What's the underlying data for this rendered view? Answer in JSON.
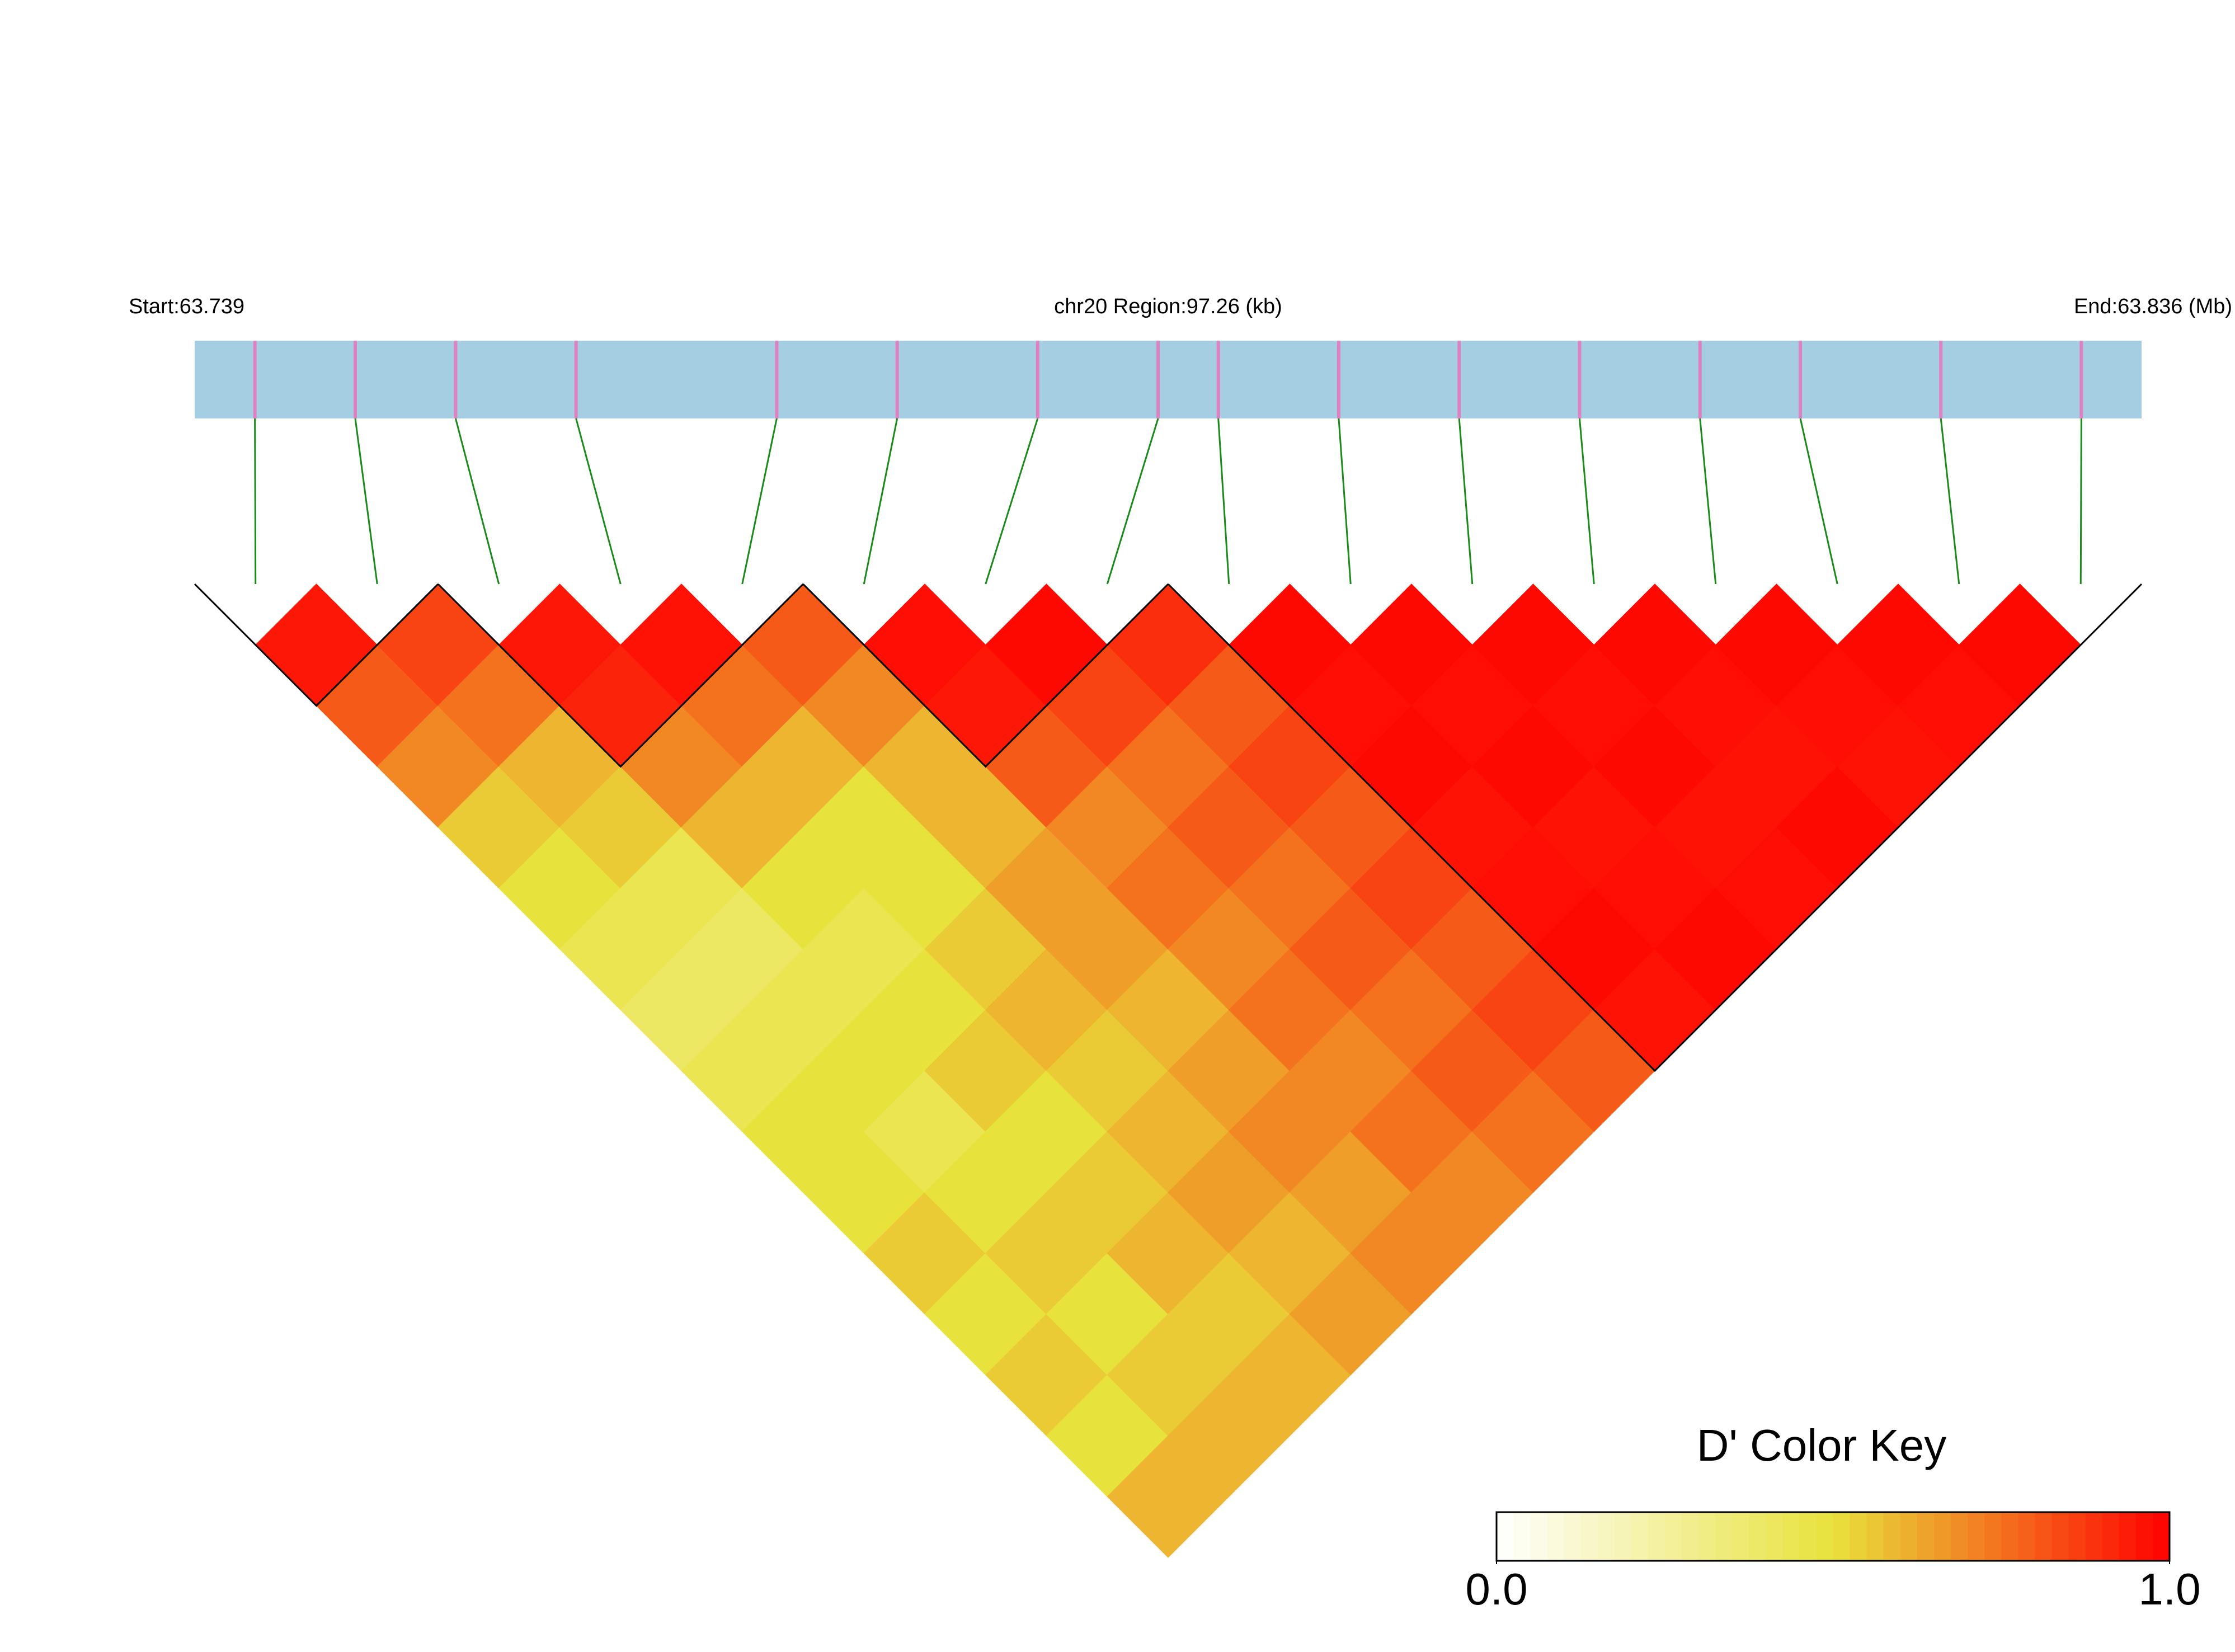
{
  "chart_data": {
    "type": "ld_heatmap",
    "start_label": "Start:63.739",
    "region_label": "chr20 Region:97.26 (kb)",
    "end_label": "End:63.836 (Mb)",
    "xlim": [
      63.739,
      63.836
    ],
    "snp_positions": [
      63.742,
      63.747,
      63.752,
      63.758,
      63.768,
      63.774,
      63.781,
      63.787,
      63.79,
      63.796,
      63.802,
      63.808,
      63.814,
      63.819,
      63.826,
      63.833
    ],
    "track_color": "#a6cee3",
    "snp_color": "#df80c0",
    "link_color": "#1a8a1a",
    "dprime": [
      [
        0.95,
        0.8,
        0.7,
        0.55,
        0.5,
        0.45,
        0.4,
        0.45,
        0.5,
        0.5,
        0.55,
        0.5,
        0.55,
        0.5,
        0.6
      ],
      [
        0.85,
        0.75,
        0.6,
        0.55,
        0.45,
        0.4,
        0.45,
        0.5,
        0.45,
        0.5,
        0.55,
        0.5,
        0.55,
        0.6
      ],
      [
        0.95,
        0.92,
        0.7,
        0.6,
        0.5,
        0.45,
        0.5,
        0.55,
        0.5,
        0.55,
        0.6,
        0.55,
        0.6
      ],
      [
        0.96,
        0.75,
        0.6,
        0.5,
        0.5,
        0.55,
        0.6,
        0.55,
        0.6,
        0.65,
        0.6,
        0.65
      ],
      [
        0.8,
        0.7,
        0.6,
        0.6,
        0.65,
        0.65,
        0.6,
        0.65,
        0.7,
        0.65,
        0.7
      ],
      [
        0.97,
        0.95,
        0.8,
        0.7,
        0.75,
        0.7,
        0.75,
        0.7,
        0.75,
        0.7
      ],
      [
        0.98,
        0.85,
        0.75,
        0.8,
        0.75,
        0.8,
        0.75,
        0.8,
        0.75
      ],
      [
        0.9,
        0.8,
        0.85,
        0.8,
        0.85,
        0.8,
        0.85,
        0.8
      ],
      [
        0.98,
        0.97,
        0.98,
        0.96,
        0.97,
        0.98,
        0.96
      ],
      [
        0.98,
        0.97,
        0.98,
        0.96,
        0.97,
        0.98
      ],
      [
        0.98,
        0.97,
        0.98,
        0.96,
        0.97
      ],
      [
        0.98,
        0.97,
        0.96,
        0.98
      ],
      [
        0.98,
        0.97,
        0.96
      ],
      [
        0.98,
        0.97
      ],
      [
        0.98
      ]
    ],
    "blocks": [
      [
        0,
        1
      ],
      [
        2,
        4
      ],
      [
        5,
        7
      ],
      [
        8,
        15
      ]
    ],
    "color_key": {
      "title": "D' Color Key",
      "lim": [
        0,
        1
      ],
      "ticks": [
        {
          "value": 0,
          "label": "0.0"
        },
        {
          "value": 1,
          "label": "1.0"
        }
      ],
      "colors": [
        "#ffffff",
        "#e8e23c",
        "#ff0000"
      ]
    }
  }
}
